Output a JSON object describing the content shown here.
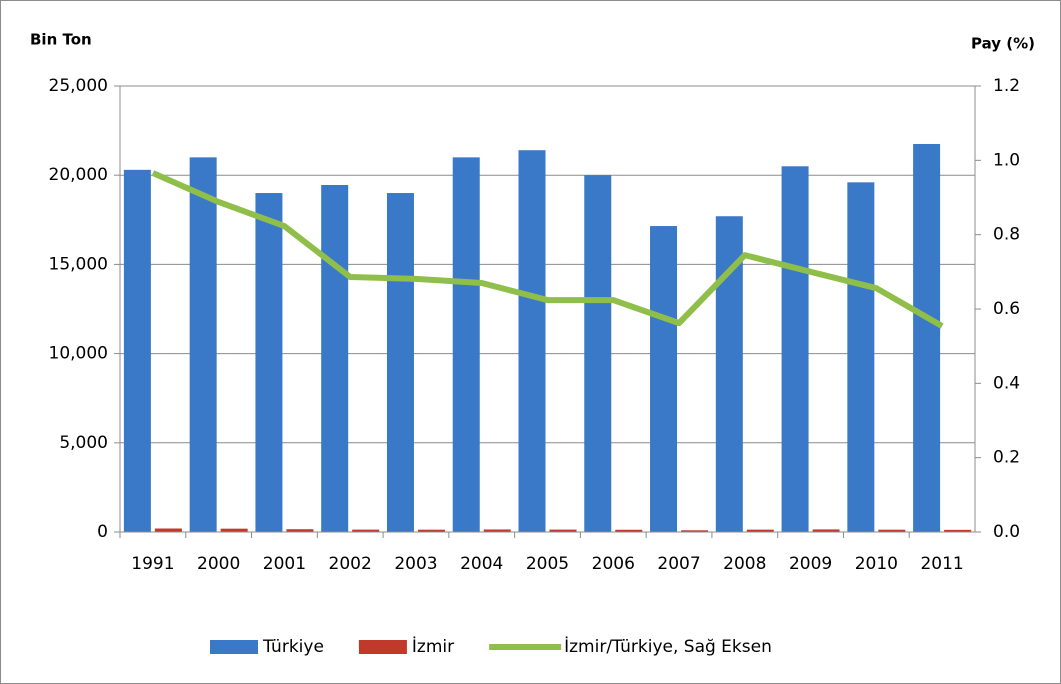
{
  "chart_data": {
    "type": "bar",
    "y_label": "Bin Ton",
    "y2_label": "Pay (%)",
    "categories": [
      "1991",
      "2000",
      "2001",
      "2002",
      "2003",
      "2004",
      "2005",
      "2006",
      "2007",
      "2008",
      "2009",
      "2010",
      "2011"
    ],
    "series": [
      {
        "name": "Türkiye",
        "type": "bar",
        "color": "#3a78c8",
        "values": [
          20300,
          21000,
          19000,
          19450,
          19000,
          21000,
          21400,
          20000,
          17150,
          17700,
          20500,
          19600,
          21750
        ]
      },
      {
        "name": "İzmir",
        "type": "bar",
        "color": "#c0392b",
        "values": [
          196,
          186,
          156,
          133,
          129,
          141,
          134,
          125,
          96,
          132,
          144,
          129,
          120
        ]
      },
      {
        "name": "İzmir/Türkiye, Sağ Eksen",
        "type": "line",
        "axis": "y2",
        "color": "#8fbf4a",
        "values": [
          0.966,
          0.888,
          0.823,
          0.686,
          0.681,
          0.67,
          0.624,
          0.624,
          0.562,
          0.745,
          0.7,
          0.656,
          0.554
        ]
      }
    ],
    "ylim": [
      0,
      25000
    ],
    "yticks": [
      {
        "value": 0,
        "label": "0"
      },
      {
        "value": 5000,
        "label": "5,000"
      },
      {
        "value": 10000,
        "label": "10,000"
      },
      {
        "value": 15000,
        "label": "15,000"
      },
      {
        "value": 20000,
        "label": "20,000"
      },
      {
        "value": 25000,
        "label": "25,000"
      }
    ],
    "y2lim": [
      0,
      1.2
    ],
    "y2ticks": [
      {
        "value": 0,
        "label": "0.0"
      },
      0.2,
      0.4,
      0.6,
      0.8,
      {
        "value": 1,
        "label": "1.0"
      },
      1.2
    ],
    "grid": true,
    "legend": "bottom"
  }
}
